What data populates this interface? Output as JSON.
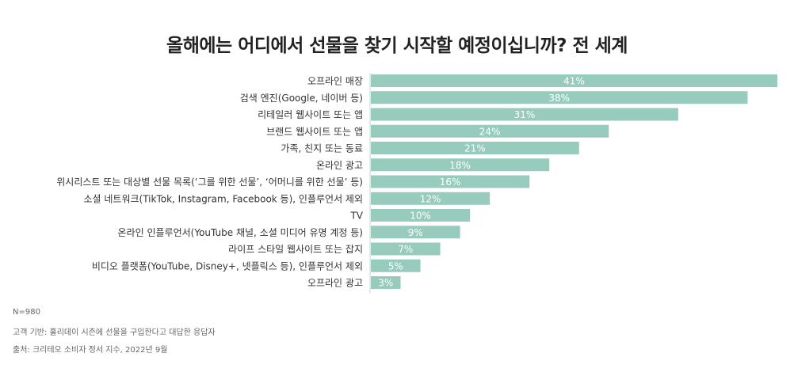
{
  "chart_data": {
    "type": "bar",
    "orientation": "horizontal",
    "title": "올해에는 어디에서 선물을 찾기 시작할 예정이십니까? 전 세계",
    "categories": [
      "오프라인 매장",
      "검색 엔진(Google, 네이버 등)",
      "리테일러 웹사이트 또는 앱",
      "브랜드 웹사이트 또는 앱",
      "가족, 친지 또는 동료",
      "온라인 광고",
      "위시리스트 또는 대상별 선물 목록(‘그를 위한 선물’, ‘어머니를 위한 선물’ 등)",
      "소셜 네트워크(TikTok, Instagram, Facebook 등), 인플루언서 제외",
      "TV",
      "온라인 인플루언서(YouTube 채널, 소셜 미디어 유명 계정 등)",
      "라이프 스타일 웹사이트 또는 잡지",
      "비디오 플랫폼(YouTube, Disney+, 넷플릭스 등), 인플루언서 제외",
      "오프라인 광고"
    ],
    "values": [
      41,
      38,
      31,
      24,
      21,
      18,
      16,
      12,
      10,
      9,
      7,
      5,
      3
    ],
    "value_labels": [
      "41%",
      "38%",
      "31%",
      "24%",
      "21%",
      "18%",
      "16%",
      "12%",
      "10%",
      "9%",
      "7%",
      "5%",
      "3%"
    ],
    "xlim": [
      0,
      41
    ],
    "grid": false,
    "bar_color": "#96cbbe"
  },
  "footnotes": {
    "n": "N=980",
    "base": "고객 기반: 홀리데이 시즌에 선물을 구입한다고 대답한 응답자",
    "source": "출처: 크리테오 소비자 정서 지수, 2022년 9월"
  }
}
